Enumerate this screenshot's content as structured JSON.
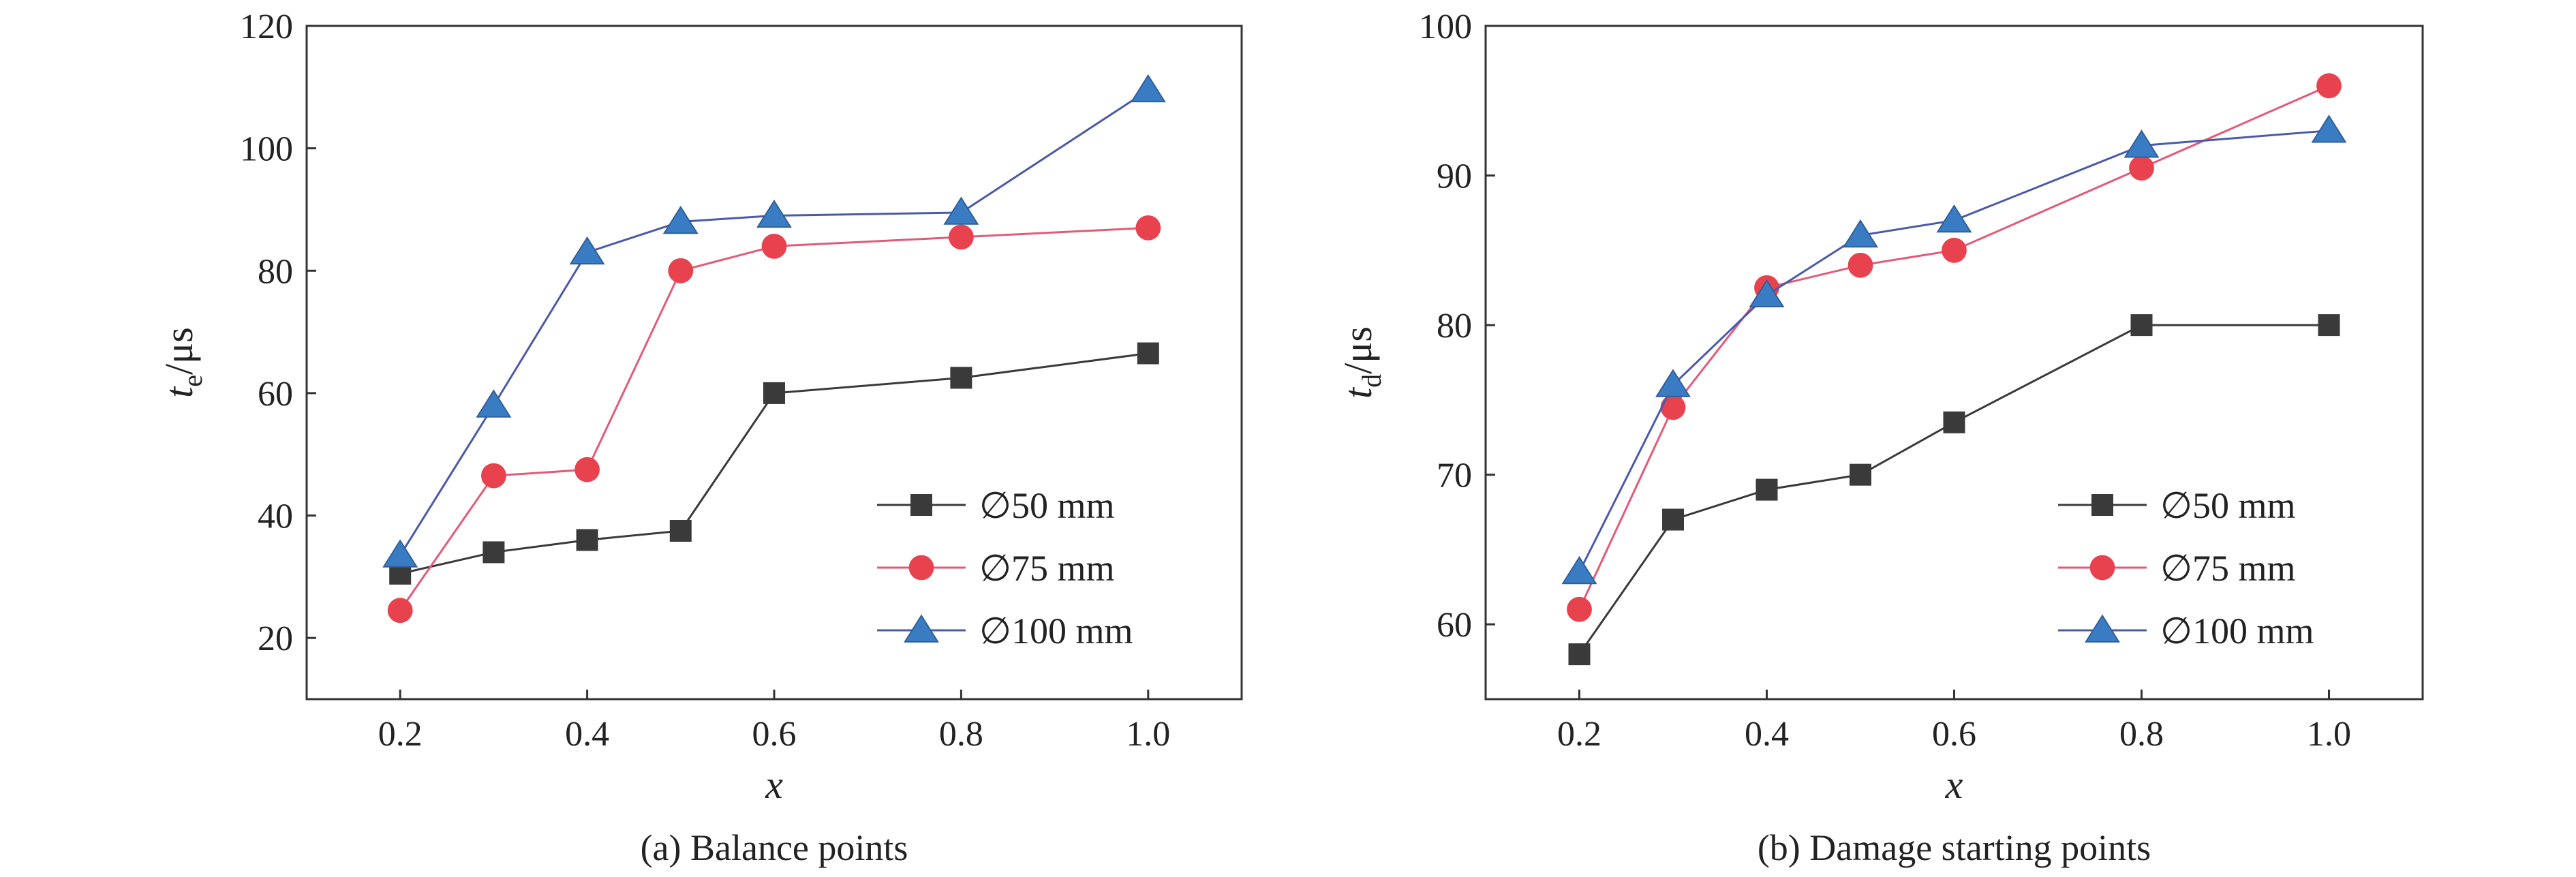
{
  "chart_data": [
    {
      "type": "line",
      "caption": "(a) Balance points",
      "xlabel": "x",
      "ylabel": {
        "base": "t",
        "sub": "e",
        "unit": "/μs"
      },
      "xlim": [
        0.1,
        1.1
      ],
      "ylim": [
        10,
        120
      ],
      "xticks": [
        0.2,
        0.4,
        0.6,
        0.8,
        1.0
      ],
      "xtick_labels": [
        "0.2",
        "0.4",
        "0.6",
        "0.8",
        "1.0"
      ],
      "yticks": [
        20,
        40,
        60,
        80,
        100,
        120
      ],
      "ytick_labels": [
        "20",
        "40",
        "60",
        "80",
        "100",
        "120"
      ],
      "legend_position": "bottom-right",
      "x": [
        0.2,
        0.3,
        0.4,
        0.5,
        0.6,
        0.8,
        1.0
      ],
      "series": [
        {
          "name": "∅50 mm",
          "marker": "square",
          "color": "#3a3a3a",
          "line_color": "#3a3a3a",
          "values": [
            30.5,
            34,
            36,
            37.5,
            60,
            62.5,
            66.5
          ]
        },
        {
          "name": "∅75 mm",
          "marker": "circle",
          "color": "#e8424f",
          "line_color": "#e35a78",
          "values": [
            24.5,
            46.5,
            47.5,
            80,
            84,
            85.5,
            87
          ]
        },
        {
          "name": "∅100 mm",
          "marker": "triangle",
          "color": "#3a7cc3",
          "line_color": "#4a5aa8",
          "values": [
            33.5,
            58,
            83,
            88,
            89,
            89.5,
            109.5
          ]
        }
      ]
    },
    {
      "type": "line",
      "caption": "(b) Damage starting points",
      "xlabel": "x",
      "ylabel": {
        "base": "t",
        "sub": "d",
        "unit": "/μs"
      },
      "xlim": [
        0.1,
        1.1
      ],
      "ylim": [
        55,
        100
      ],
      "xticks": [
        0.2,
        0.4,
        0.6,
        0.8,
        1.0
      ],
      "xtick_labels": [
        "0.2",
        "0.4",
        "0.6",
        "0.8",
        "1.0"
      ],
      "yticks": [
        60,
        70,
        80,
        90,
        100
      ],
      "ytick_labels": [
        "60",
        "70",
        "80",
        "90",
        "100"
      ],
      "legend_position": "bottom-right",
      "x": [
        0.2,
        0.3,
        0.4,
        0.5,
        0.6,
        0.8,
        1.0
      ],
      "series": [
        {
          "name": "∅50 mm",
          "marker": "square",
          "color": "#3a3a3a",
          "line_color": "#3a3a3a",
          "values": [
            58,
            67,
            69,
            70,
            73.5,
            80,
            80
          ]
        },
        {
          "name": "∅75 mm",
          "marker": "circle",
          "color": "#e8424f",
          "line_color": "#e35a78",
          "values": [
            61,
            74.5,
            82.5,
            84,
            85,
            90.5,
            96
          ]
        },
        {
          "name": "∅100 mm",
          "marker": "triangle",
          "color": "#3a7cc3",
          "line_color": "#4a5aa8",
          "values": [
            63.5,
            76,
            82,
            86,
            87,
            92,
            93
          ]
        }
      ]
    }
  ]
}
